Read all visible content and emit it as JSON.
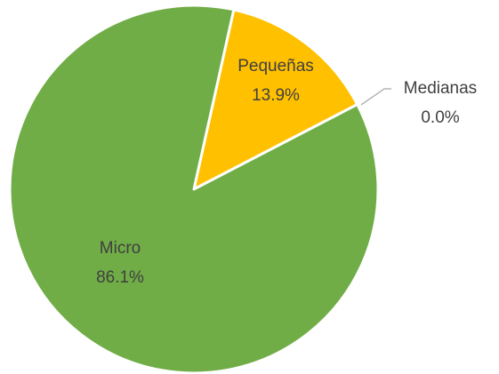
{
  "chart_data": {
    "type": "pie",
    "categories": [
      "Pequeñas",
      "Medianas",
      "Micro"
    ],
    "values": [
      13.9,
      0.0,
      86.1
    ],
    "value_labels": [
      "13.9%",
      "0.0%",
      "86.1%"
    ],
    "series": [
      {
        "colors": [
          "#ffc000",
          "#a5a5a5",
          "#70ad47"
        ]
      }
    ]
  }
}
